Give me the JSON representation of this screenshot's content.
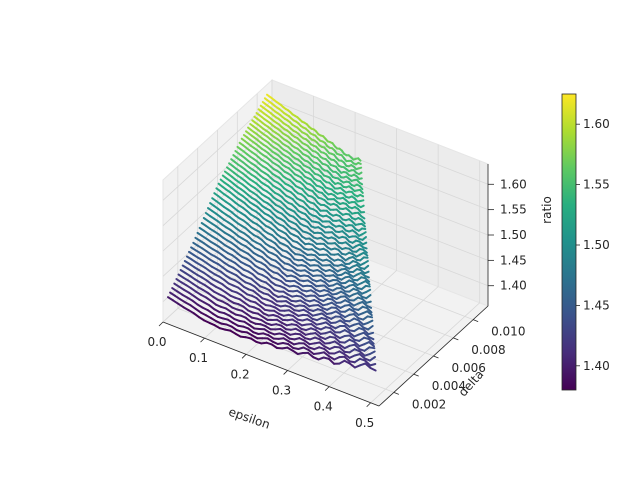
{
  "chart_data": {
    "type": "surface-contour-3d",
    "xlabel": "epsilon",
    "ylabel": "delta",
    "zlabel": "ratio",
    "colorbar_label": "ratio",
    "colormap": "viridis",
    "xlim": [
      0.0,
      0.52
    ],
    "ylim": [
      0.0005,
      0.0115
    ],
    "zlim": [
      1.36,
      1.64
    ],
    "x_ticks": [
      0.0,
      0.1,
      0.2,
      0.3,
      0.4,
      0.5
    ],
    "x_tick_labels": [
      "0.0",
      "0.1",
      "0.2",
      "0.3",
      "0.4",
      "0.5"
    ],
    "y_ticks": [
      0.002,
      0.004,
      0.006,
      0.008,
      0.01
    ],
    "y_tick_labels": [
      "0.002",
      "0.004",
      "0.006",
      "0.008",
      "0.010"
    ],
    "z_ticks": [
      1.4,
      1.45,
      1.5,
      1.55,
      1.6
    ],
    "z_tick_labels": [
      "1.40",
      "1.45",
      "1.50",
      "1.55",
      "1.60"
    ],
    "colorbar_range": [
      1.38,
      1.625
    ],
    "colorbar_ticks": [
      1.4,
      1.45,
      1.5,
      1.55,
      1.6
    ],
    "colorbar_tick_labels": [
      "1.40",
      "1.45",
      "1.50",
      "1.55",
      "1.60"
    ],
    "grid": true,
    "surface_samples": {
      "epsilon": [
        0.0,
        0.1,
        0.2,
        0.3,
        0.4,
        0.5
      ],
      "delta": [
        0.001,
        0.0035,
        0.006,
        0.0085,
        0.011
      ],
      "ratio": [
        [
          1.4,
          1.46,
          1.53,
          1.58,
          1.62
        ],
        [
          1.38,
          1.44,
          1.5,
          1.55,
          1.59
        ],
        [
          1.38,
          1.42,
          1.47,
          1.52,
          1.56
        ],
        [
          1.39,
          1.43,
          1.47,
          1.52,
          1.57
        ],
        [
          1.4,
          1.45,
          1.5,
          1.55,
          1.6
        ],
        [
          1.42,
          1.47,
          1.52,
          1.57,
          1.62
        ]
      ]
    },
    "colors": {
      "pane_fill": "#f2f2f2",
      "grid": "#d8d8d8",
      "axis": "#262626",
      "colormap_stops": [
        "#440154",
        "#472d7b",
        "#3b528b",
        "#2c728e",
        "#21918c",
        "#28ae80",
        "#5ec962",
        "#addc30",
        "#fde725"
      ]
    }
  }
}
